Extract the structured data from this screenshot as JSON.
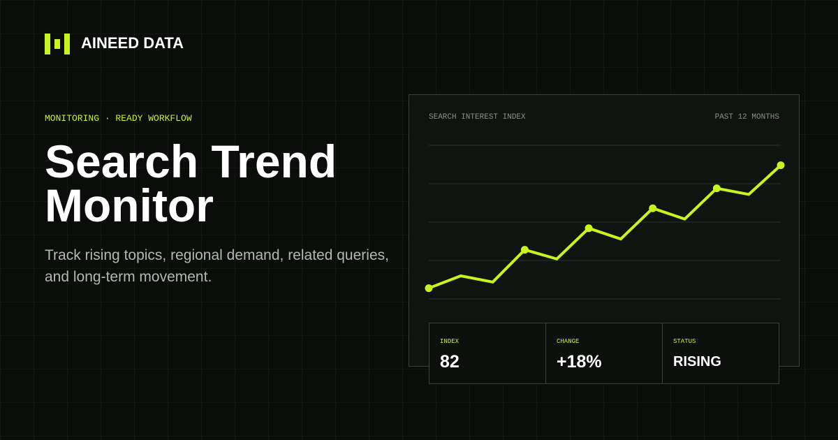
{
  "brand": "AINEED DATA",
  "eyebrow": "MONITORING · READY WORKFLOW",
  "title": "Search Trend Monitor",
  "description": "Track rising topics, regional demand, related queries, and long-term movement.",
  "chart_data": {
    "type": "line",
    "title": "SEARCH INTEREST INDEX",
    "subtitle": "PAST 12 MONTHS",
    "categories": [
      null,
      null,
      null,
      null,
      null,
      null,
      null,
      null,
      null,
      null,
      null,
      null
    ],
    "values": [
      7,
      15,
      11,
      32,
      26,
      46,
      39,
      59,
      52,
      72,
      68,
      87
    ],
    "color": "#c8f51c",
    "marker_points": [
      0,
      3,
      5,
      7,
      9,
      11
    ],
    "ylim": [
      0,
      100
    ],
    "yticks": [
      0,
      25,
      50,
      75,
      100
    ],
    "grid": true
  },
  "stats": [
    {
      "label": "INDEX",
      "value": "82"
    },
    {
      "label": "CHANGE",
      "value": "+18%"
    },
    {
      "label": "STATUS",
      "value": "RISING"
    }
  ]
}
